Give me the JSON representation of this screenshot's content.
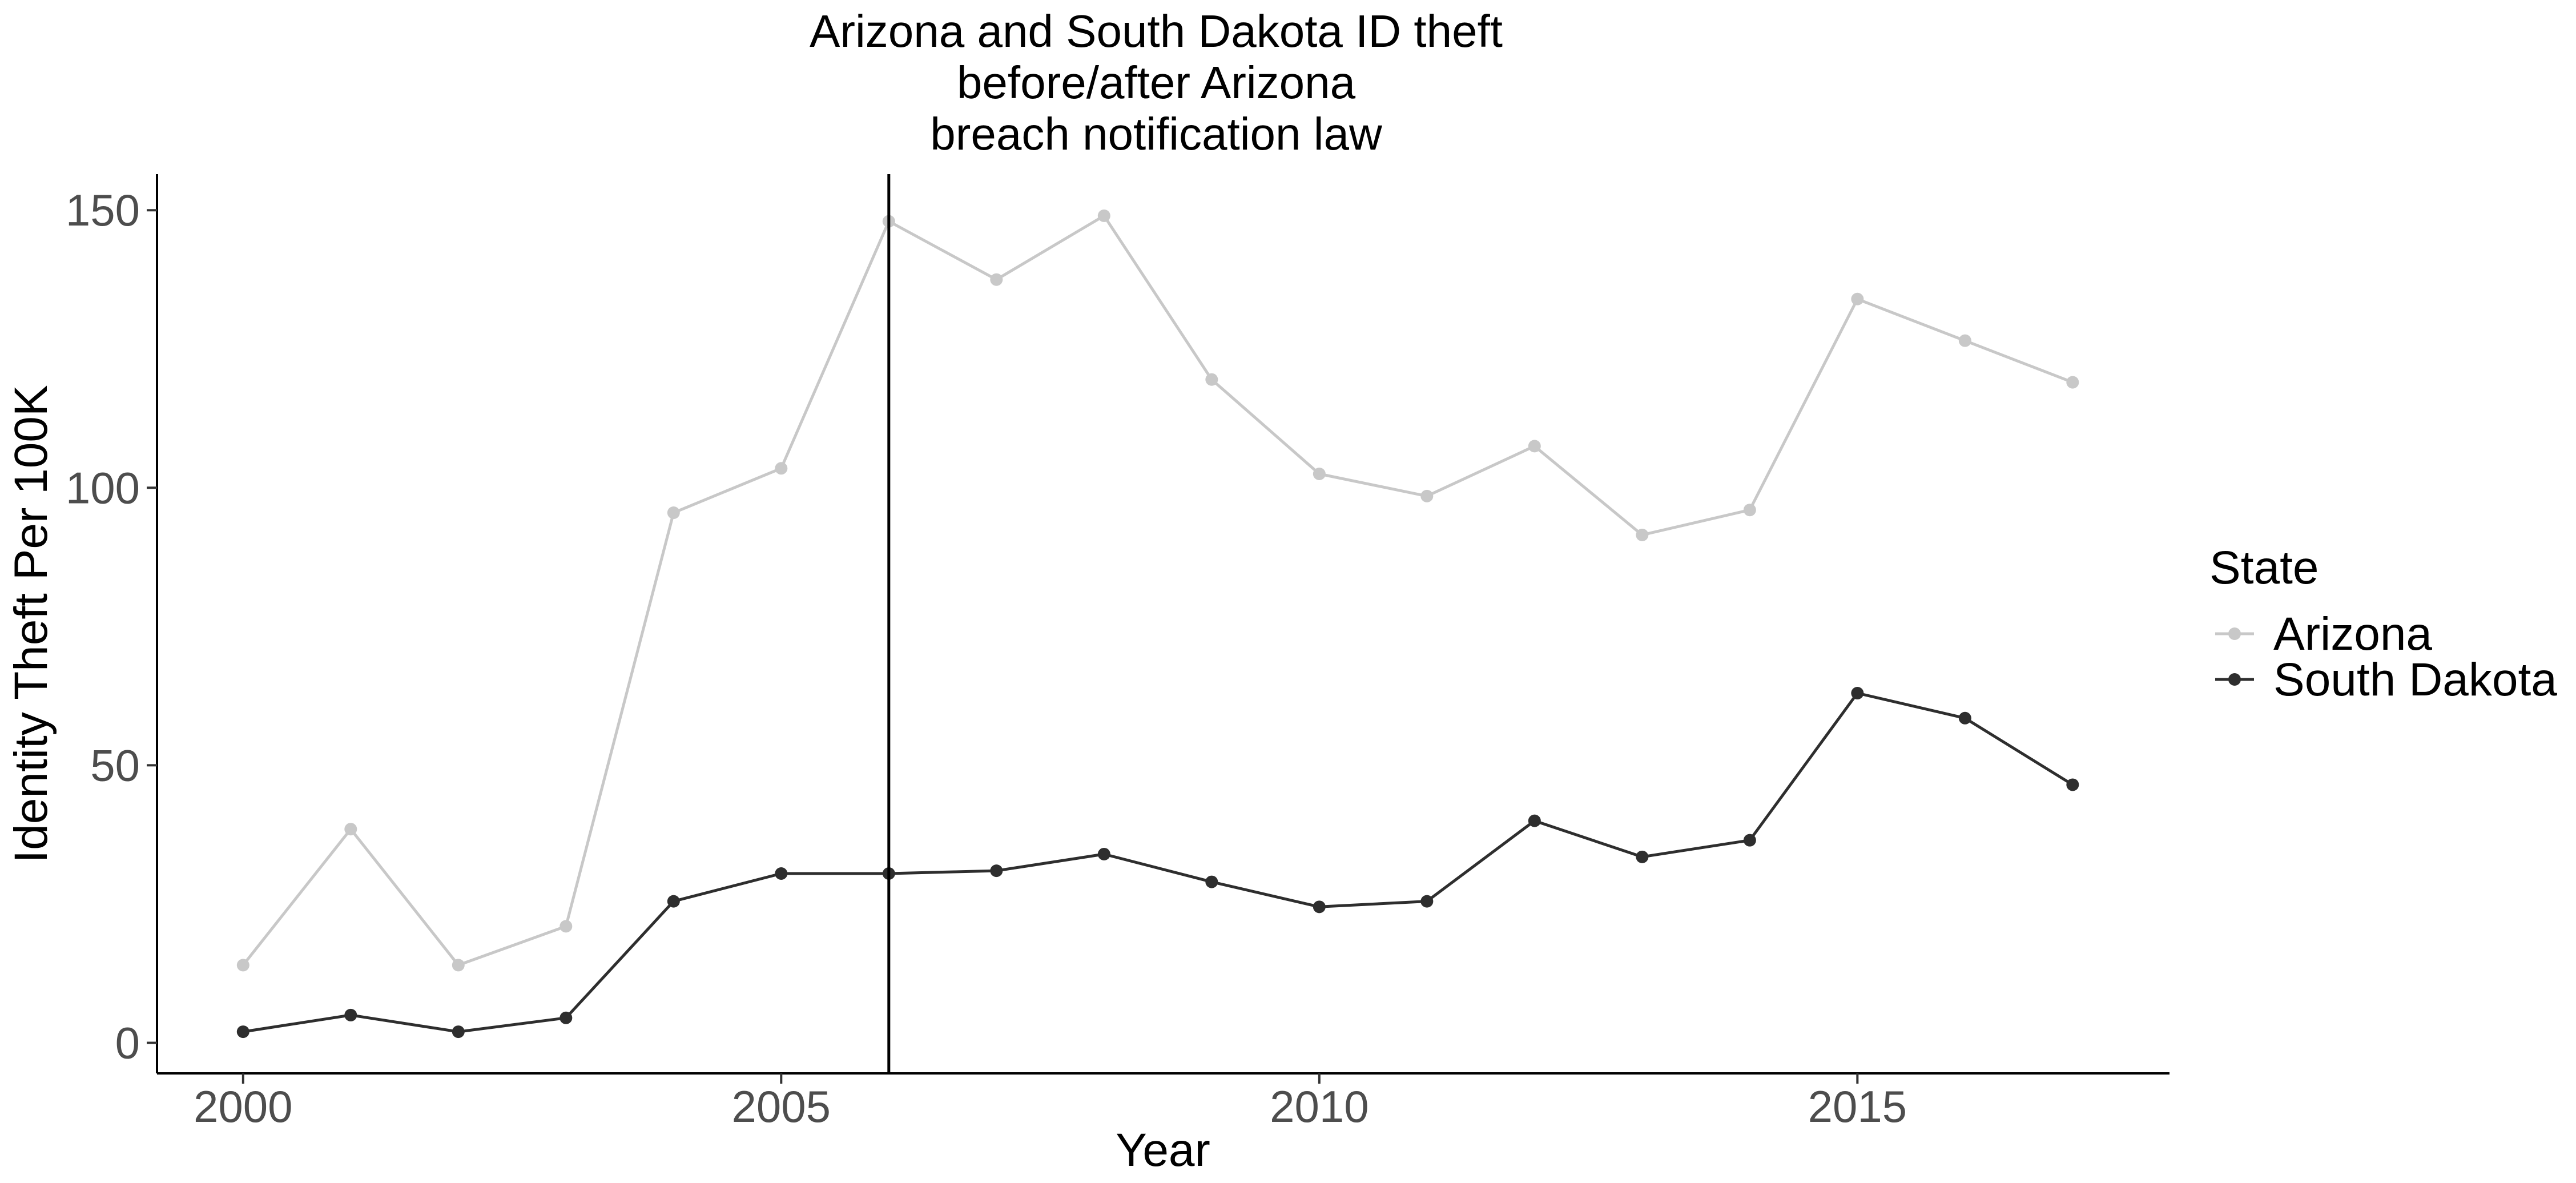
{
  "chart_data": {
    "type": "line",
    "title_lines": [
      "Arizona and South Dakota ID theft",
      "before/after Arizona",
      "breach notification law"
    ],
    "xlabel": "Year",
    "ylabel": "Identity Theft Per 100K",
    "xlim": [
      1999.2,
      2017.9
    ],
    "ylim": [
      -5.5,
      156.5
    ],
    "x_ticks": [
      2000,
      2005,
      2010,
      2015
    ],
    "y_ticks": [
      0,
      50,
      100,
      150
    ],
    "grid": false,
    "vertical_reference_line": {
      "x": 2006
    },
    "x": [
      2000,
      2001,
      2002,
      2003,
      2004,
      2005,
      2006,
      2007,
      2008,
      2009,
      2010,
      2011,
      2012,
      2013,
      2014,
      2015,
      2016,
      2017
    ],
    "series": [
      {
        "name": "Arizona",
        "color": "#c8c8c8",
        "values": [
          14,
          38.5,
          14,
          21,
          95.5,
          103.5,
          148,
          137.5,
          149,
          119.5,
          102.5,
          98.5,
          107.5,
          91.5,
          96,
          134,
          126.5,
          119
        ]
      },
      {
        "name": "South Dakota",
        "color": "#2e2e2e",
        "values": [
          2,
          5,
          2,
          4.5,
          25.5,
          30.5,
          30.5,
          31,
          34,
          29,
          24.5,
          25.5,
          40,
          33.5,
          36.5,
          63,
          58.5,
          46.5
        ]
      }
    ],
    "legend": {
      "title": "State",
      "position": "right"
    }
  }
}
